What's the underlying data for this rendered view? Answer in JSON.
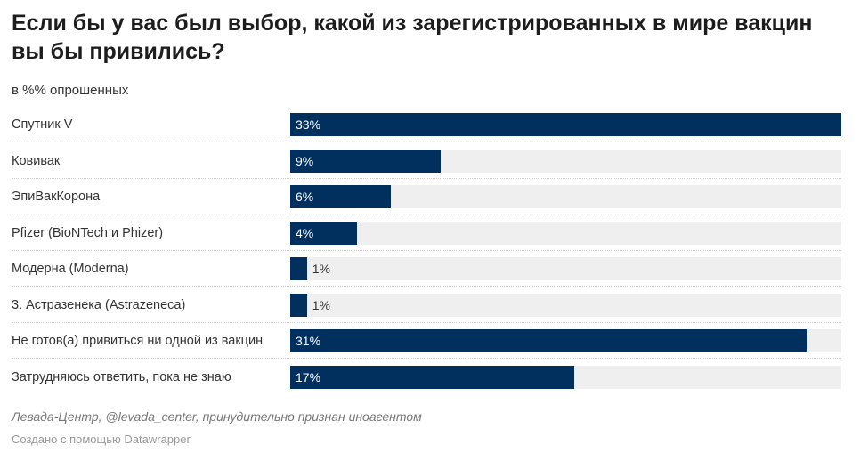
{
  "title": "Если бы у вас был выбор, какой из зарегистрированных в мире вакцин вы бы привились?",
  "subtitle": "в %% опрошенных",
  "chart_data": {
    "type": "bar",
    "orientation": "horizontal",
    "categories": [
      "Спутник V",
      "Ковивак",
      "ЭпиВакКорона",
      "Pfizer (BioNTech и Phizer)",
      "Модерна (Moderna)",
      "3. Астразенека (Astrazeneca)",
      "Не готов(а) привиться ни одной из вакцин",
      "Затрудняюсь ответить, пока не знаю"
    ],
    "values": [
      33,
      9,
      6,
      4,
      1,
      1,
      31,
      17
    ],
    "value_labels": [
      "33%",
      "9%",
      "6%",
      "4%",
      "1%",
      "1%",
      "31%",
      "17%"
    ],
    "xlim": [
      0,
      33
    ],
    "unit": "%",
    "bar_color": "#01305f",
    "track_color": "#efefef",
    "grid": false
  },
  "footer": {
    "source": "Левада-Центр, @levada_center, принудительно признан иноагентом",
    "credit": "Создано с помощью Datawrapper"
  }
}
